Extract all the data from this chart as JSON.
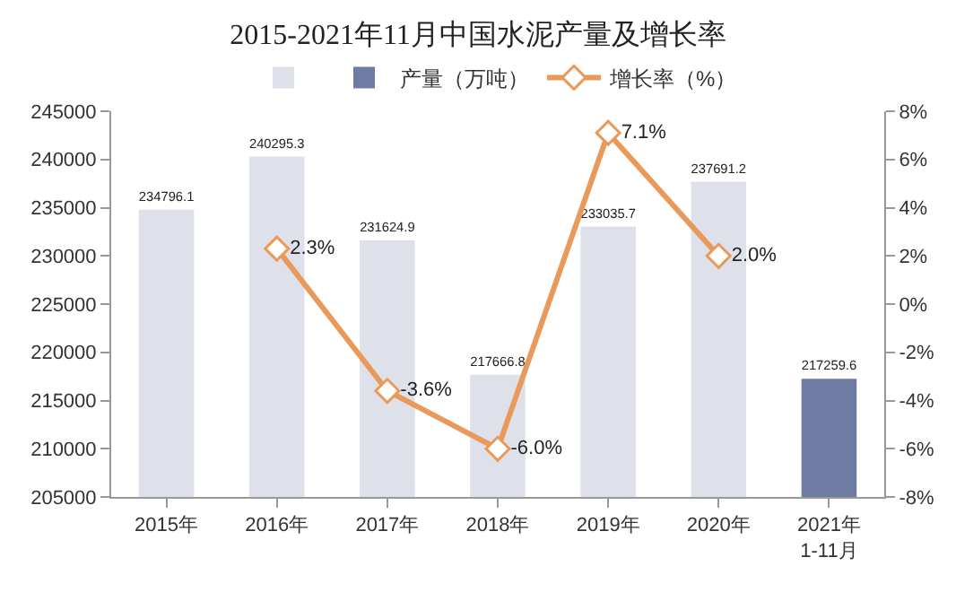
{
  "chart_data": {
    "type": "bar",
    "title": "2015-2021年11月中国水泥产量及增长率",
    "categories": [
      "2015年",
      "2016年",
      "2017年",
      "2018年",
      "2019年",
      "2020年",
      "2021年\n1-11月"
    ],
    "series": [
      {
        "color": "#dfe1ea",
        "values": [
          234796.1,
          240295.3,
          231624.9,
          217666.8,
          233035.7,
          237691.2,
          null
        ],
        "value_labels": [
          "234796.1",
          "240295.3",
          "231624.9",
          "217666.8",
          "233035.7",
          "237691.2",
          null
        ]
      },
      {
        "name": "产量（万吨）",
        "color": "#6e7ba3",
        "values": [
          null,
          null,
          null,
          null,
          null,
          null,
          217259.6
        ],
        "value_labels": [
          null,
          null,
          null,
          null,
          null,
          null,
          "217259.6"
        ]
      },
      {
        "name": "增长率（%）",
        "type": "line",
        "axis": "y2",
        "color": "#e9995a",
        "marker": "diamond",
        "values": [
          null,
          2.3,
          -3.6,
          -6.0,
          7.1,
          2.0,
          null
        ],
        "value_labels": [
          null,
          "2.3%",
          "-3.6%",
          "-6.0%",
          "7.1%",
          "2.0%",
          null
        ]
      }
    ],
    "ylim": [
      205000,
      245000
    ],
    "yticks": [
      205000,
      210000,
      215000,
      220000,
      225000,
      230000,
      235000,
      240000,
      245000
    ],
    "y2lim": [
      -8,
      8
    ],
    "y2ticks": [
      {
        "value": -8,
        "label": "-8%"
      },
      {
        "value": -6,
        "label": "-6%"
      },
      {
        "value": -4,
        "label": "-4%"
      },
      {
        "value": -2,
        "label": "-2%"
      },
      {
        "value": 0,
        "label": "0%"
      },
      {
        "value": 2,
        "label": "2%"
      },
      {
        "value": 4,
        "label": "4%"
      },
      {
        "value": 6,
        "label": "6%"
      },
      {
        "value": 8,
        "label": "8%"
      }
    ],
    "grid": false,
    "legend": "top"
  }
}
